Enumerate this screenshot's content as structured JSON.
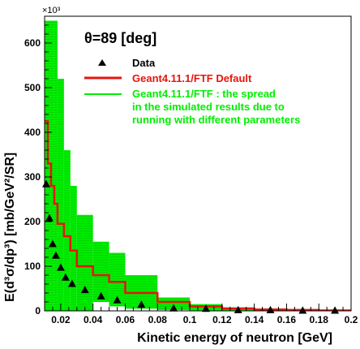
{
  "chart_data": {
    "type": "line",
    "title": "",
    "annotation": "θ=89 [deg]",
    "xlabel": "Kinetic energy of neutron [GeV]",
    "ylabel": "E(d³σ/dp³) [mb/GeV²/SR]",
    "y_multiplier": "×10³",
    "xlim": [
      0.01,
      0.2
    ],
    "ylim": [
      0,
      660
    ],
    "x_ticks": [
      0.02,
      0.04,
      0.06,
      0.08,
      0.1,
      0.12,
      0.14,
      0.16,
      0.18,
      0.2
    ],
    "x_tick_labels": [
      "0.02",
      "0.04",
      "0.06",
      "0.08",
      "0.1",
      "0.12",
      "0.14",
      "0.16",
      "0.18",
      "0.2"
    ],
    "y_ticks": [
      0,
      100,
      200,
      300,
      400,
      500,
      600
    ],
    "y_tick_labels": [
      "0",
      "100",
      "200",
      "300",
      "400",
      "500",
      "600"
    ],
    "legend_placement": "top-right",
    "legend": [
      {
        "label": "Data",
        "kind": "marker"
      },
      {
        "label": "Geant4.11.1/FTF Default",
        "kind": "line"
      },
      {
        "label": "Geant4.11.1/FTF : the spread",
        "kind": "band"
      },
      {
        "label": "in the simulated results due to",
        "kind": "text"
      },
      {
        "label": "running with different parameters",
        "kind": "text"
      }
    ],
    "colors": {
      "data": "#000000",
      "default": "#e8140c",
      "band": "#00ee00",
      "band_line": "#00a800"
    },
    "series": [
      {
        "name": "Data",
        "type": "scatter",
        "x": [
          0.011,
          0.013,
          0.015,
          0.017,
          0.02,
          0.023,
          0.027,
          0.035,
          0.045,
          0.055,
          0.07,
          0.09,
          0.11,
          0.13,
          0.15,
          0.17,
          0.19
        ],
        "y": [
          284,
          208,
          150,
          124,
          97,
          75,
          61,
          47,
          33,
          24,
          14,
          6,
          5,
          2,
          2,
          1,
          1
        ]
      },
      {
        "name": "Geant4.11.1/FTF Default",
        "type": "step",
        "edges": [
          0.01,
          0.012,
          0.014,
          0.016,
          0.018,
          0.022,
          0.026,
          0.03,
          0.04,
          0.05,
          0.06,
          0.08,
          0.1,
          0.12,
          0.14,
          0.16,
          0.18,
          0.2
        ],
        "values": [
          425,
          330,
          280,
          240,
          195,
          167,
          135,
          100,
          80,
          65,
          40,
          20,
          10,
          5,
          3,
          2,
          1
        ]
      },
      {
        "name": "Geant4.11.1/FTF : the spread",
        "type": "band",
        "edges": [
          0.01,
          0.012,
          0.014,
          0.016,
          0.018,
          0.022,
          0.026,
          0.03,
          0.04,
          0.05,
          0.06,
          0.08,
          0.1,
          0.12,
          0.14,
          0.16,
          0.18,
          0.2
        ],
        "low": [
          0,
          0,
          0,
          0,
          0,
          0,
          0,
          0,
          20,
          10,
          5,
          2,
          1,
          0,
          0,
          0,
          0
        ],
        "high": [
          650,
          650,
          650,
          650,
          520,
          360,
          280,
          215,
          155,
          130,
          80,
          30,
          15,
          8,
          5,
          3,
          2
        ]
      }
    ]
  }
}
